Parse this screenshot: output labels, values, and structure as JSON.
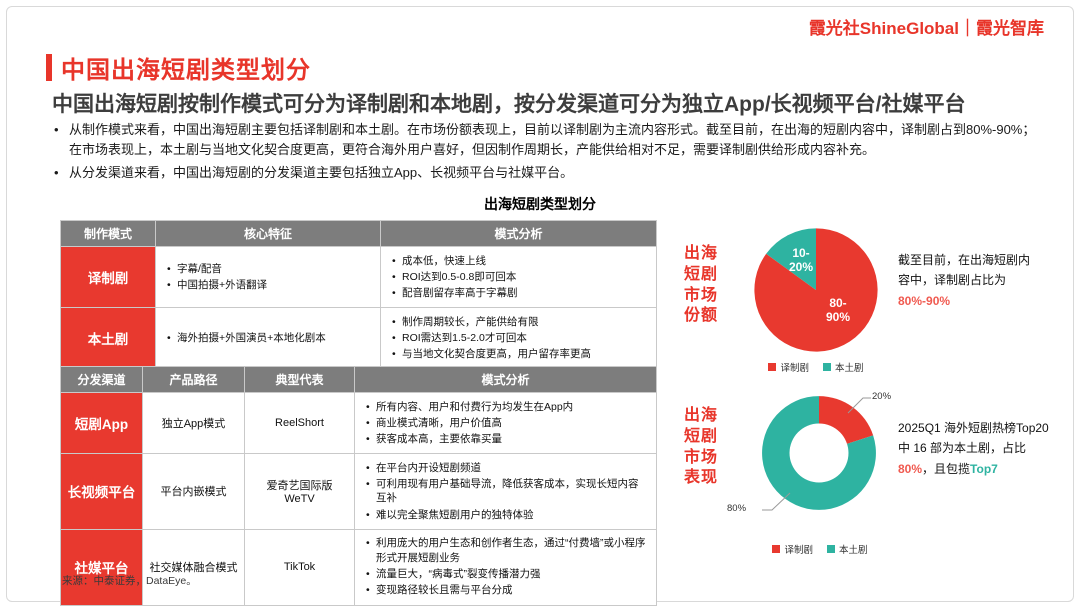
{
  "colors": {
    "accent_red": "#e8352a",
    "teal": "#2eb3a1",
    "table_header_gray": "#7d7d7d",
    "highlight_red": "#f05a50"
  },
  "logo": {
    "text": "霞光社ShineGlobal｜霞光智库"
  },
  "header": {
    "title": "中国出海短剧类型划分",
    "subtitle": "中国出海短剧按制作模式可分为译制剧和本地剧，按分发渠道可分为独立App/长视频平台/社媒平台",
    "bullets": [
      "从制作模式来看，中国出海短剧主要包括译制剧和本土剧。在市场份额表现上，目前以译制剧为主流内容形式。截至目前，在出海的短剧内容中，译制剧占到80%-90%；在市场表现上，本土剧与当地文化契合度更高，更符合海外用户喜好，但因制作周期长，产能供给相对不足，需要译制剧供给形成内容补充。",
      "从分发渠道来看，中国出海短剧的分发渠道主要包括独立App、长视频平台与社媒平台。"
    ]
  },
  "section_title": "出海短剧类型划分",
  "table1": {
    "headers": [
      "制作模式",
      "核心特征",
      "模式分析"
    ],
    "rows": [
      {
        "label": "译制剧",
        "features": [
          "字幕/配音",
          "中国拍摄+外语翻译"
        ],
        "analysis": [
          "成本低，快速上线",
          "ROI达到0.5-0.8即可回本",
          "配音剧留存率高于字幕剧"
        ]
      },
      {
        "label": "本土剧",
        "features": [
          "海外拍摄+外国演员+本地化剧本"
        ],
        "analysis": [
          "制作周期较长，产能供给有限",
          "ROI需达到1.5-2.0才可回本",
          "与当地文化契合度更高，用户留存率更高"
        ]
      }
    ]
  },
  "table2": {
    "headers": [
      "分发渠道",
      "产品路径",
      "典型代表",
      "模式分析"
    ],
    "rows": [
      {
        "label": "短剧App",
        "path": "独立App模式",
        "example": "ReelShort",
        "analysis": [
          "所有内容、用户和付费行为均发生在App内",
          "商业模式清晰，用户价值高",
          "获客成本高，主要依靠买量"
        ]
      },
      {
        "label": "长视频平台",
        "path": "平台内嵌模式",
        "example": "爱奇艺国际版\nWeTV",
        "analysis": [
          "在平台内开设短剧频道",
          "可利用现有用户基础导流，降低获客成本，实现长短内容互补",
          "难以完全聚焦短剧用户的独特体验"
        ]
      },
      {
        "label": "社媒平台",
        "path": "社交媒体融合模式",
        "example": "TikTok",
        "analysis": [
          "利用庞大的用户生态和创作者生态，通过“付费墙”或小程序形式开展短剧业务",
          "流量巨大，“病毒式”裂变传播潜力强",
          "变现路径较长且需与平台分成"
        ]
      }
    ]
  },
  "chart_data": [
    {
      "type": "pie",
      "side_label": "出海\n短剧\n市场\n份额",
      "slices": [
        {
          "label": "译制剧",
          "value": 85,
          "display": "80-90%",
          "lines": [
            "80-",
            "90%"
          ],
          "color": "#e8392f"
        },
        {
          "label": "本土剧",
          "value": 15,
          "display": "10-20%",
          "lines": [
            "10-",
            "20%"
          ],
          "color": "#2eb3a1"
        }
      ],
      "legend_position": "bottom",
      "note": {
        "text": "截至目前，在出海短剧内容中，译制剧占比为",
        "highlight": "80%-90%"
      }
    },
    {
      "type": "donut",
      "side_label": "出海\n短剧\n市场\n表现",
      "slices": [
        {
          "label": "译制剧",
          "value": 20,
          "display": "20%",
          "color": "#e8392f"
        },
        {
          "label": "本土剧",
          "value": 80,
          "display": "80%",
          "color": "#2eb3a1"
        }
      ],
      "legend_position": "bottom",
      "note": {
        "p1": "2025Q1 海外短剧热榜Top20 中 16 部为本土剧，占比 ",
        "hl1": "80%",
        "p2": "，且包揽",
        "hl2": "Top7"
      }
    }
  ],
  "footer": {
    "source": "来源：中泰证券，DataEye。"
  }
}
